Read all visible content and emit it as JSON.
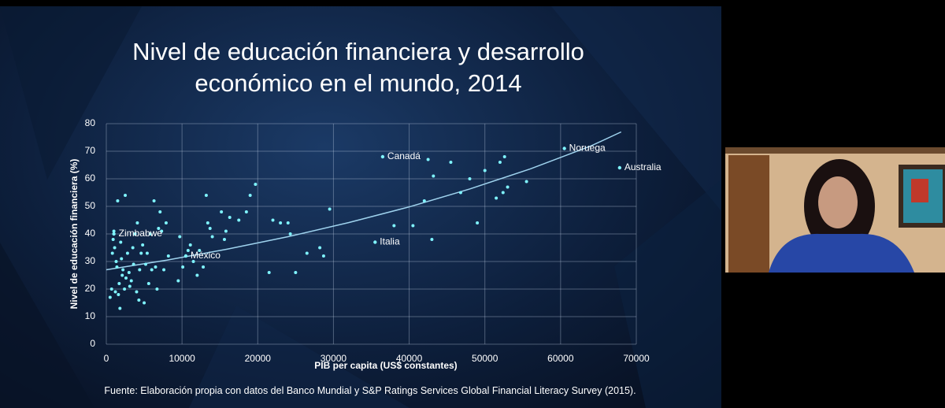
{
  "chart_data": {
    "type": "scatter",
    "title": "Nivel de educación financiera y desarrollo económico en el mundo, 2014",
    "x_label": "PIB per capita (US$ constantes)",
    "y_label": "Nivel de educación financiera (%)",
    "xlim": [
      0,
      70000
    ],
    "ylim": [
      0,
      80
    ],
    "xticks": [
      0,
      10000,
      20000,
      30000,
      40000,
      50000,
      60000,
      70000
    ],
    "yticks": [
      0,
      10,
      20,
      30,
      40,
      50,
      60,
      70,
      80
    ],
    "grid": true,
    "series": [
      {
        "color": "#7ff4ff",
        "x": [
          500,
          700,
          800,
          900,
          1000,
          1100,
          1200,
          1300,
          1400,
          1500,
          1600,
          1700,
          1800,
          1900,
          2000,
          2100,
          2200,
          2400,
          2500,
          2600,
          2800,
          3000,
          3100,
          3300,
          3500,
          3600,
          3800,
          4000,
          4100,
          4300,
          4400,
          4600,
          4800,
          5000,
          5200,
          5400,
          5600,
          5800,
          6000,
          6300,
          6500,
          6700,
          6900,
          7100,
          7300,
          7600,
          7900,
          8200,
          9500,
          9700,
          10100,
          10800,
          11100,
          11500,
          12000,
          12300,
          12800,
          13200,
          13400,
          13700,
          14000,
          15200,
          15600,
          15800,
          16300,
          17500,
          18500,
          19000,
          19700,
          21500,
          22000,
          23000,
          24000,
          24300,
          25000,
          26500,
          28200,
          28700,
          29500,
          38000,
          40500,
          42000,
          42500,
          43000,
          43200,
          45500,
          46800,
          48000,
          49000,
          50000,
          51500,
          52000,
          52400,
          52600,
          53000,
          55500
        ],
        "values": [
          17,
          20,
          33,
          38,
          41,
          35,
          19,
          30,
          28,
          52,
          18,
          22,
          13,
          37,
          31,
          25,
          27,
          20,
          54,
          24,
          33,
          26,
          21,
          23,
          35,
          29,
          40,
          19,
          44,
          16,
          27,
          33,
          36,
          15,
          29,
          33,
          22,
          40,
          27,
          52,
          28,
          20,
          42,
          48,
          41,
          27,
          44,
          32,
          23,
          39,
          28,
          34,
          36,
          30,
          25,
          34,
          28,
          54,
          44,
          42,
          39,
          48,
          38,
          41,
          46,
          45,
          48,
          54,
          58,
          26,
          45,
          44,
          44,
          40,
          26,
          33,
          35,
          32,
          49,
          43,
          43,
          52,
          67,
          38,
          61,
          66,
          55,
          60,
          44,
          63,
          53,
          66,
          55,
          68,
          57,
          59
        ]
      }
    ],
    "trendline": {
      "color": "#9fd3ee",
      "x": [
        0,
        8000,
        16000,
        24000,
        32000,
        40000,
        48000,
        56000,
        64000,
        68000
      ],
      "values": [
        27,
        30.5,
        34.5,
        39,
        44.1,
        49.8,
        56.3,
        63.6,
        71.9,
        77
      ]
    },
    "annotations": [
      {
        "text": "Zimbabwe",
        "x": 1000,
        "y": 40
      },
      {
        "text": "México",
        "x": 10500,
        "y": 32
      },
      {
        "text": "Italia",
        "x": 35500,
        "y": 37
      },
      {
        "text": "Canadá",
        "x": 36500,
        "y": 68
      },
      {
        "text": "Noruega",
        "x": 60500,
        "y": 71
      },
      {
        "text": "Australia",
        "x": 67800,
        "y": 64
      }
    ]
  },
  "source": "Fuente: Elaboración propia con datos del Banco Mundial y S&P Ratings Services Global Financial Literacy Survey (2015)."
}
